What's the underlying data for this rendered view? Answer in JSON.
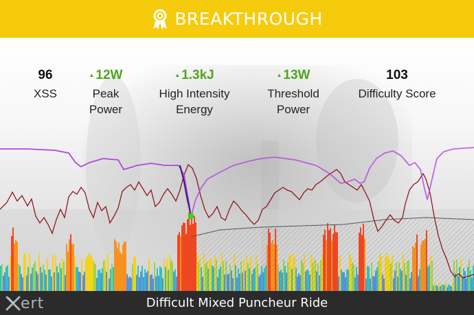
{
  "banner": {
    "title": "BREAKTHROUGH",
    "icon": "award-ribbon-icon",
    "color": "#f5cb0c"
  },
  "stats": [
    {
      "value": "96",
      "label_lines": [
        "XSS"
      ],
      "trend": "none"
    },
    {
      "value": "12W",
      "label_lines": [
        "Peak",
        "Power"
      ],
      "trend": "up"
    },
    {
      "value": "1.3kJ",
      "label_lines": [
        "High Intensity",
        "Energy"
      ],
      "trend": "up"
    },
    {
      "value": "13W",
      "label_lines": [
        "Threshold",
        "Power"
      ],
      "trend": "up"
    },
    {
      "value": "103",
      "label_lines": [
        "Difficulty Score"
      ],
      "trend": "none"
    }
  ],
  "footer": {
    "logo_text": "ert",
    "workout_name": "Difficult Mixed Puncheur Ride"
  },
  "colors": {
    "up": "#4ea51f",
    "mpa_line": "#b246e0",
    "heart_rate": "#8e1420",
    "breakthrough_point": "#3ed11a",
    "footer_bg": "#2b2b2b"
  },
  "chart_data": {
    "type": "area",
    "series": []
  }
}
